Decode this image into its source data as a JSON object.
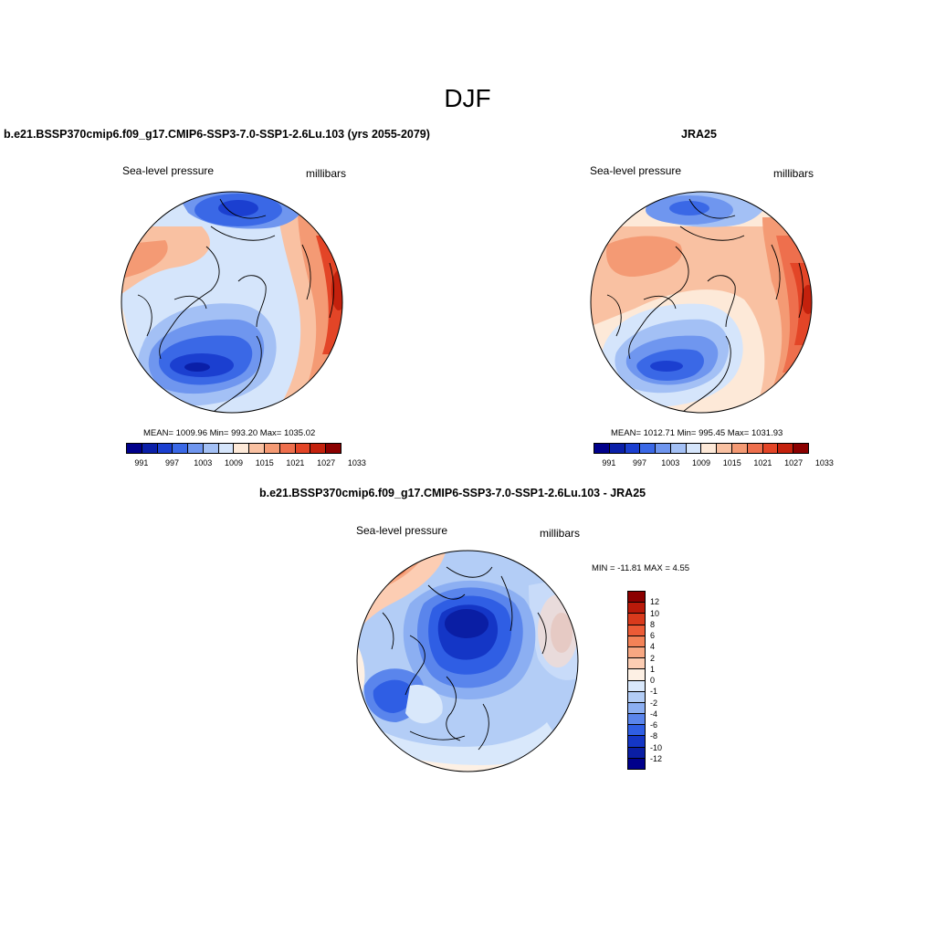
{
  "figure": {
    "title": "DJF"
  },
  "panels": [
    {
      "title": "b.e21.BSSP370cmip6.f09_g17.CMIP6-SSP3-7.0-SSP1-2.6Lu.103 (yrs 2055-2079)",
      "variable": "Sea-level pressure",
      "units": "millibars",
      "stats": "MEAN= 1009.96  Min= 993.20  Max= 1035.02"
    },
    {
      "title": "JRA25",
      "variable": "Sea-level pressure",
      "units": "millibars",
      "stats": "MEAN= 1012.71  Min= 995.45  Max= 1031.93"
    },
    {
      "title": "b.e21.BSSP370cmip6.f09_g17.CMIP6-SSP3-7.0-SSP1-2.6Lu.103 - JRA25",
      "variable": "Sea-level pressure",
      "units": "millibars",
      "stats": "MIN = -11.81 MAX =   4.55"
    }
  ],
  "chart_data": [
    {
      "type": "heatmap",
      "title": "b.e21.BSSP370cmip6.f09_g17.CMIP6-SSP3-7.0-SSP1-2.6Lu.103 (yrs 2055-2079)",
      "variable": "Sea-level pressure",
      "units": "millibars",
      "projection": "north polar stereographic",
      "mean": 1009.96,
      "min": 993.2,
      "max": 1035.02,
      "colorbar_ticks": [
        "991",
        "997",
        "1003",
        "1009",
        "1015",
        "1021",
        "1027",
        "1033"
      ],
      "colorbar_colors": [
        "#00008b",
        "#0a1fa8",
        "#1b3fd0",
        "#3a68e6",
        "#6f96ef",
        "#a3c0f5",
        "#d5e5fb",
        "#fde9d8",
        "#f9c1a2",
        "#f49a74",
        "#ee6f4d",
        "#e34527",
        "#c4210d",
        "#8b0000"
      ]
    },
    {
      "type": "heatmap",
      "title": "JRA25",
      "variable": "Sea-level pressure",
      "units": "millibars",
      "projection": "north polar stereographic",
      "mean": 1012.71,
      "min": 995.45,
      "max": 1031.93,
      "colorbar_ticks": [
        "991",
        "997",
        "1003",
        "1009",
        "1015",
        "1021",
        "1027",
        "1033"
      ],
      "colorbar_colors": [
        "#00008b",
        "#0a1fa8",
        "#1b3fd0",
        "#3a68e6",
        "#6f96ef",
        "#a3c0f5",
        "#d5e5fb",
        "#fde9d8",
        "#f9c1a2",
        "#f49a74",
        "#ee6f4d",
        "#e34527",
        "#c4210d",
        "#8b0000"
      ]
    },
    {
      "type": "heatmap",
      "title": "b.e21.BSSP370cmip6.f09_g17.CMIP6-SSP3-7.0-SSP1-2.6Lu.103 - JRA25",
      "variable": "Sea-level pressure",
      "units": "millibars",
      "projection": "north polar stereographic",
      "min": -11.81,
      "max": 4.55,
      "colorbar_ticks": [
        "12",
        "10",
        "8",
        "6",
        "4",
        "2",
        "1",
        "0",
        "-1",
        "-2",
        "-4",
        "-6",
        "-8",
        "-10",
        "-12"
      ],
      "colorbar_colors": [
        "#8b0000",
        "#b91a0a",
        "#d93a1c",
        "#ec5b36",
        "#f38257",
        "#f7a782",
        "#fccdb3",
        "#fdf0e4",
        "#d9e8fb",
        "#b3cdf6",
        "#8caff2",
        "#5a85ec",
        "#2f5ee4",
        "#1436c6",
        "#0a1ea4",
        "#00008b"
      ]
    }
  ]
}
